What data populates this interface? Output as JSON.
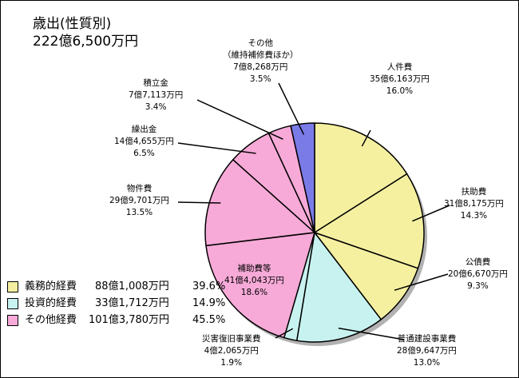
{
  "chart_data": {
    "type": "pie",
    "title": "歳出(性質別)",
    "subtitle": "222億6,500万円",
    "slices": [
      {
        "name": "人件費",
        "amount": "35億6,163万円",
        "percent": 16.0,
        "percent_label": "16.0%",
        "group": 0
      },
      {
        "name": "扶助費",
        "amount": "31億8,175万円",
        "percent": 14.3,
        "percent_label": "14.3%",
        "group": 0
      },
      {
        "name": "公債費",
        "amount": "20億6,670万円",
        "percent": 9.3,
        "percent_label": "9.3%",
        "group": 0
      },
      {
        "name": "普通建設事業費",
        "amount": "28億9,647万円",
        "percent": 13.0,
        "percent_label": "13.0%",
        "group": 1
      },
      {
        "name": "災害復旧事業費",
        "amount": "4億2,065万円",
        "percent": 1.9,
        "percent_label": "1.9%",
        "group": 1
      },
      {
        "name": "補助費等",
        "amount": "41億4,043万円",
        "percent": 18.6,
        "percent_label": "18.6%",
        "group": 2
      },
      {
        "name": "物件費",
        "amount": "29億9,701万円",
        "percent": 13.5,
        "percent_label": "13.5%",
        "group": 2
      },
      {
        "name": "繰出金",
        "amount": "14億4,655万円",
        "percent": 6.5,
        "percent_label": "6.5%",
        "group": 2
      },
      {
        "name": "積立金",
        "amount": "7億7,113万円",
        "percent": 3.4,
        "percent_label": "3.4%",
        "group": 2
      },
      {
        "name": "その他",
        "sublabel": "（維持補修費ほか）",
        "amount": "7億8,268万円",
        "percent": 3.5,
        "percent_label": "3.5%",
        "group": 3
      }
    ],
    "groups": [
      {
        "name": "義務的経費",
        "amount": "88億1,008万円",
        "percent_label": "39.6%",
        "color": "#f5f0a0"
      },
      {
        "name": "投資的経費",
        "amount": "33億1,712万円",
        "percent_label": "14.9%",
        "color": "#c8f2f0"
      },
      {
        "name": "その他経費",
        "amount": "101億3,780万円",
        "percent_label": "45.5%",
        "color": "#f7aad8"
      }
    ],
    "other_color": "#7b7be8",
    "legend_position": "bottom-left"
  }
}
